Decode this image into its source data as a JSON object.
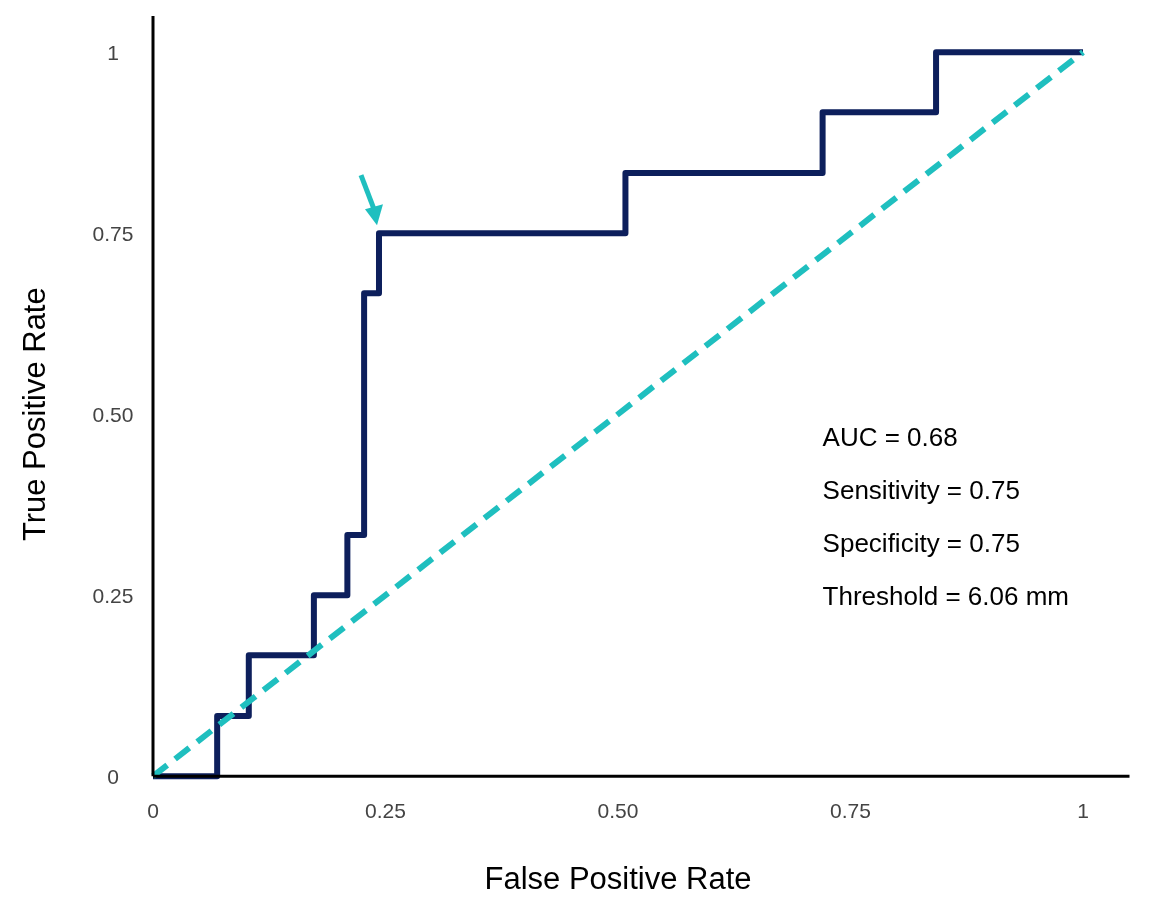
{
  "chart_data": {
    "type": "step",
    "xlabel": "False Positive Rate",
    "ylabel": "True Positive Rate",
    "xlim": [
      0,
      1.05
    ],
    "ylim": [
      0,
      1.05
    ],
    "xticks": [
      0,
      {
        "value": 0.25,
        "label": "0.25"
      },
      {
        "value": 0.5,
        "label": "0.50"
      },
      {
        "value": 0.75,
        "label": "0.75"
      },
      1
    ],
    "yticks": [
      0,
      {
        "value": 0.25,
        "label": "0.25"
      },
      {
        "value": 0.5,
        "label": "0.50"
      },
      {
        "value": 0.75,
        "label": "0.75"
      },
      1
    ],
    "grid": false,
    "series": [
      {
        "color": "#0d1f5c",
        "line_style": "solid",
        "x": [
          0,
          0.069,
          0.103,
          0.173,
          0.209,
          0.227,
          0.243,
          0.508,
          0.72,
          0.842,
          1
        ],
        "values": [
          0,
          0.083,
          0.167,
          0.25,
          0.333,
          0.667,
          0.75,
          0.833,
          0.917,
          1,
          1
        ]
      },
      {
        "type": "line",
        "color": "#1fbfbf",
        "line_style": "dashed",
        "x": [
          0,
          1
        ],
        "values": [
          0,
          1
        ]
      }
    ],
    "annotations": [
      "AUC = 0.68",
      "Sensitivity = 0.75",
      "Specificity = 0.75",
      "Threshold = 6.06 mm"
    ]
  }
}
